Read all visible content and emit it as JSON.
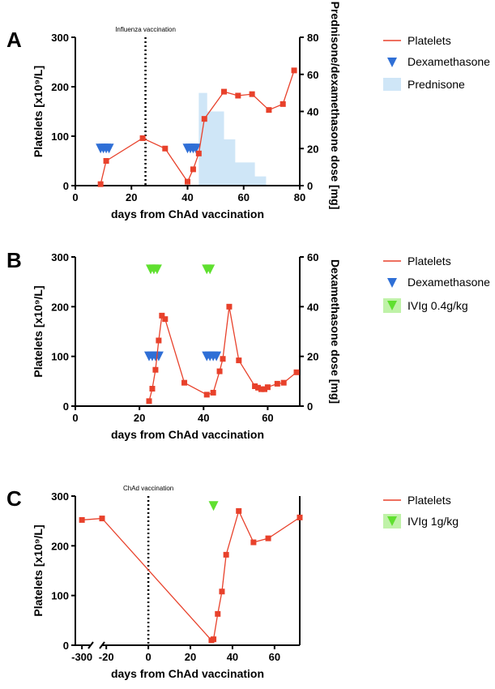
{
  "chart_data": [
    {
      "panel": "A",
      "type": "line",
      "xlabel": "days from ChAd vaccination",
      "ylabel": "Platelets [x10⁹/L]",
      "y2label": "Prednisone/dexamethasone dose [mg]",
      "xlim": [
        0,
        80
      ],
      "ylim": [
        0,
        300
      ],
      "y2lim": [
        0,
        80
      ],
      "xticks": [
        "0",
        "20",
        "40",
        "60",
        "80"
      ],
      "yticks": [
        "0",
        "100",
        "200",
        "300"
      ],
      "y2ticks": [
        "0",
        "20",
        "40",
        "60",
        "80"
      ],
      "annotation": {
        "text": "Influenza vaccination",
        "x": 25
      },
      "legend": [
        {
          "label": "Platelets",
          "kind": "line"
        },
        {
          "label": "Dexamethasone",
          "kind": "marker"
        },
        {
          "label": "Prednisone",
          "kind": "area"
        }
      ],
      "series": [
        {
          "name": "Platelets",
          "x": [
            9,
            11,
            24,
            32,
            40,
            42,
            44,
            46,
            53,
            58,
            63,
            69,
            74,
            78
          ],
          "y": [
            3,
            50,
            96,
            75,
            8,
            33,
            65,
            135,
            190,
            182,
            185,
            153,
            165,
            233
          ]
        },
        {
          "name": "Dexamethasone",
          "x": [
            9,
            10,
            11,
            12,
            40,
            41,
            42,
            43
          ],
          "y": [
            20,
            20,
            20,
            20,
            20,
            20,
            20,
            20
          ]
        },
        {
          "name": "Prednisone",
          "steps": [
            [
              44,
              50
            ],
            [
              47,
              40
            ],
            [
              53,
              25
            ],
            [
              57,
              12.5
            ],
            [
              64,
              5
            ],
            [
              68,
              0
            ]
          ]
        }
      ]
    },
    {
      "panel": "B",
      "type": "line",
      "xlabel": "days from ChAd vaccination",
      "ylabel": "Platelets [x10⁹/L]",
      "y2label": "Dexamethasone dose [mg]",
      "xlim": [
        0,
        70
      ],
      "ylim": [
        0,
        300
      ],
      "y2lim": [
        0,
        60
      ],
      "xticks": [
        "0",
        "20",
        "40",
        "60"
      ],
      "yticks": [
        "0",
        "100",
        "200",
        "300"
      ],
      "y2ticks": [
        "0",
        "20",
        "40",
        "60"
      ],
      "legend": [
        {
          "label": "Platelets",
          "kind": "line"
        },
        {
          "label": "Dexamethasone",
          "kind": "marker"
        },
        {
          "label": "IVIg 0.4g/kg",
          "kind": "marker-green"
        }
      ],
      "series": [
        {
          "name": "Platelets",
          "x": [
            23,
            24,
            25,
            26,
            27,
            28,
            34,
            41,
            43,
            45,
            46,
            48,
            51,
            56,
            57,
            58,
            59,
            60,
            63,
            65,
            69
          ],
          "y": [
            10,
            35,
            73,
            132,
            182,
            175,
            47,
            23,
            27,
            70,
            95,
            200,
            92,
            40,
            37,
            34,
            34,
            38,
            45,
            47,
            68
          ]
        },
        {
          "name": "Dexamethasone",
          "x": [
            23,
            24,
            25,
            26,
            41,
            42,
            43,
            44
          ],
          "y": [
            20,
            20,
            20,
            20,
            20,
            20,
            20,
            20
          ]
        },
        {
          "name": "IVIg 0.4g/kg",
          "x": [
            23.5,
            24.5,
            25.5,
            41,
            42
          ],
          "y": [
            55,
            55,
            55,
            55,
            55
          ]
        }
      ]
    },
    {
      "panel": "C",
      "type": "line",
      "xlabel": "days from ChAd vaccination",
      "ylabel": "Platelets [x10⁹/L]",
      "ylim": [
        0,
        300
      ],
      "xticks": [
        "-300",
        "-20",
        "0",
        "20",
        "40",
        "60"
      ],
      "yticks": [
        "0",
        "100",
        "200",
        "300"
      ],
      "annotation": {
        "text": "ChAd vaccination",
        "x": 0
      },
      "axis_break": true,
      "legend": [
        {
          "label": "Platelets",
          "kind": "line"
        },
        {
          "label": "IVIg 1g/kg",
          "kind": "marker-green"
        }
      ],
      "series": [
        {
          "name": "Platelets",
          "x": [
            -300,
            -22,
            30,
            31,
            33,
            35,
            37,
            43,
            50,
            57,
            72
          ],
          "y": [
            252,
            255,
            10,
            12,
            63,
            108,
            182,
            270,
            207,
            215,
            257
          ]
        },
        {
          "name": "IVIg 1g/kg",
          "x": [
            31
          ],
          "y": [
            280
          ]
        }
      ]
    }
  ],
  "colors": {
    "platelets": "#e8412b",
    "dexamethasone": "#2f6fd6",
    "ivig": "#5fe02f",
    "ivig_box": "#bff2a8",
    "prednisone": "#cfe6f7"
  },
  "icons": {
    "platelets": "square-marker-line",
    "dexamethasone": "down-triangle-marker",
    "ivig": "down-triangle-marker",
    "prednisone": "filled-area-swatch"
  }
}
